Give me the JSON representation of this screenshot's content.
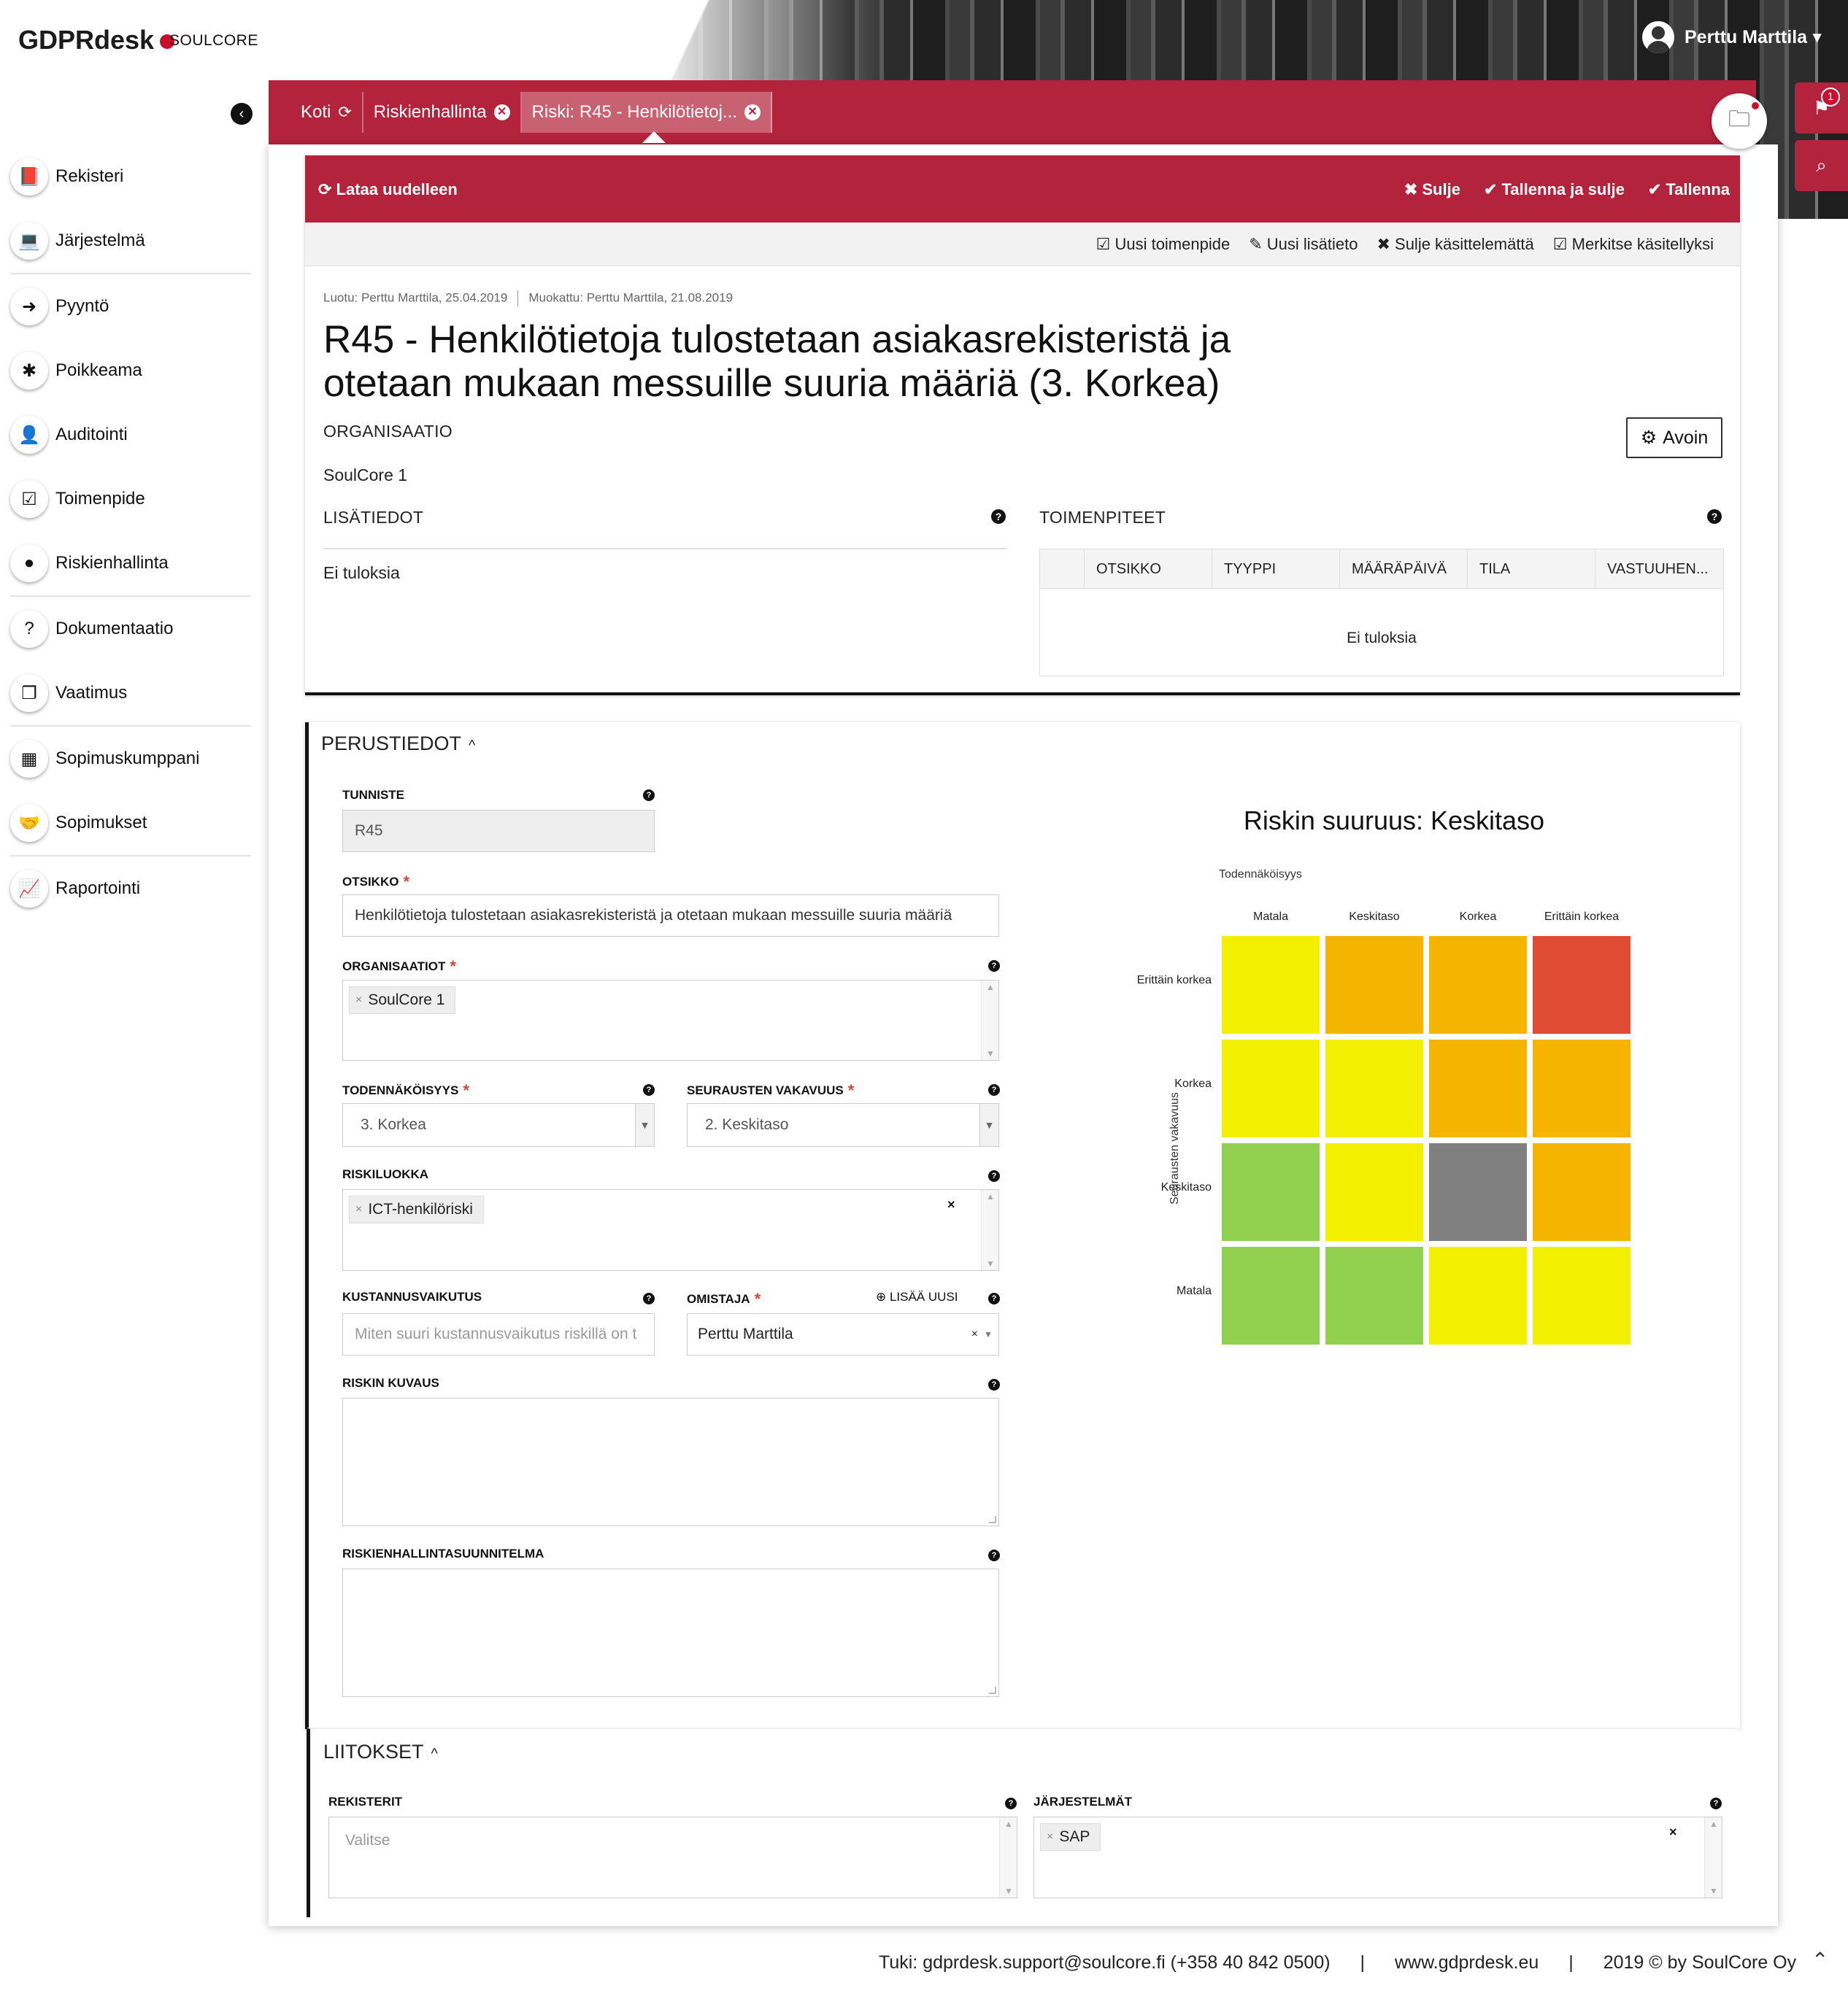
{
  "brand": {
    "logo": "GDPRdesk",
    "company": "SOULCORE"
  },
  "user": {
    "name": "Perttu Marttila"
  },
  "sidebar": {
    "items": [
      {
        "label": "Rekisteri",
        "icon": "book-icon",
        "glyph": "📕"
      },
      {
        "label": "Järjestelmä",
        "icon": "laptop-icon",
        "glyph": "💻"
      },
      {
        "label": "Pyyntö",
        "icon": "sign-in-icon",
        "glyph": "➜"
      },
      {
        "label": "Poikkeama",
        "icon": "bug-icon",
        "glyph": "✱"
      },
      {
        "label": "Auditointi",
        "icon": "user-secret-icon",
        "glyph": "👤"
      },
      {
        "label": "Toimenpide",
        "icon": "check-square-icon",
        "glyph": "☑"
      },
      {
        "label": "Riskienhallinta",
        "icon": "bomb-icon",
        "glyph": "●"
      },
      {
        "label": "Dokumentaatio",
        "icon": "question-circle-icon",
        "glyph": "?"
      },
      {
        "label": "Vaatimus",
        "icon": "copy-icon",
        "glyph": "❐"
      },
      {
        "label": "Sopimuskumppani",
        "icon": "building-icon",
        "glyph": "▦"
      },
      {
        "label": "Sopimukset",
        "icon": "handshake-icon",
        "glyph": "🤝"
      },
      {
        "label": "Raportointi",
        "icon": "line-chart-icon",
        "glyph": "📈"
      }
    ]
  },
  "tabs": [
    {
      "label": "Koti",
      "icon": "refresh-icon"
    },
    {
      "label": "Riskienhallinta",
      "icon": "close-icon"
    },
    {
      "label": "Riski: R45 - Henkilötietoj...",
      "icon": "close-icon"
    }
  ],
  "notifications": {
    "count": "1"
  },
  "toolbar": {
    "reload": "Lataa uudelleen",
    "close": "Sulje",
    "save_close": "Tallenna ja sulje",
    "save": "Tallenna"
  },
  "subbar": {
    "new_action": "Uusi toimenpide",
    "new_info": "Uusi lisätieto",
    "close_unhandled": "Sulje käsittelemättä",
    "mark_handled": "Merkitse käsitellyksi"
  },
  "record": {
    "created": "Luotu: Perttu Marttila, 25.04.2019",
    "modified": "Muokattu: Perttu Marttila, 21.08.2019",
    "title": "R45 - Henkilötietoja tulostetaan asiakasrekisteristä ja otetaan mukaan messuille suuria määriä (3. Korkea)",
    "org_label": "ORGANISAATIO",
    "org_value": "SoulCore 1",
    "status": "Avoin",
    "info_label": "LISÄTIEDOT",
    "info_empty": "Ei tuloksia",
    "actions_label": "TOIMENPITEET",
    "actions_columns": [
      "OTSIKKO",
      "TYYPPI",
      "MÄÄRÄPÄIVÄ",
      "TILA",
      "VASTUUHEN..."
    ],
    "actions_empty": "Ei tuloksia"
  },
  "basics": {
    "section": "PERUSTIEDOT",
    "id_label": "TUNNISTE",
    "id_value": "R45",
    "title_label": "OTSIKKO",
    "title_value": "Henkilötietoja tulostetaan asiakasrekisteristä ja otetaan mukaan messuille suuria määriä",
    "orgs_label": "ORGANISAATIOT",
    "orgs_value": "SoulCore 1",
    "prob_label": "TODENNÄKÖISYYS",
    "prob_value": "3. Korkea",
    "sev_label": "SEURAUSTEN VAKAVUUS",
    "sev_value": "2. Keskitaso",
    "class_label": "RISKILUOKKA",
    "class_value": "ICT-henkilöriski",
    "cost_label": "KUSTANNUSVAIKUTUS",
    "cost_placeholder": "Miten suuri kustannusvaikutus riskillä on t",
    "owner_label": "OMISTAJA",
    "owner_add": "LISÄÄ UUSI",
    "owner_value": "Perttu Marttila",
    "desc_label": "RISKIN KUVAUS",
    "plan_label": "RISKIENHALLINTASUUNNITELMA",
    "required_mark": "*",
    "chevron": "^"
  },
  "matrix": {
    "title": "Riskin suuruus: Keskitaso",
    "x_label": "Todennäköisyys",
    "y_label": "Seurausten vakavuus",
    "columns": [
      "Matala",
      "Keskitaso",
      "Korkea",
      "Erittäin korkea"
    ],
    "rows": [
      "Erittäin korkea",
      "Korkea",
      "Keskitaso",
      "Matala"
    ],
    "colors": [
      [
        "#f2ef00",
        "#f4b400",
        "#f4b400",
        "#e04b33"
      ],
      [
        "#f2ef00",
        "#f2ef00",
        "#f4b400",
        "#f4b400"
      ],
      [
        "#92d050",
        "#f2ef00",
        "#808080",
        "#f4b400"
      ],
      [
        "#92d050",
        "#92d050",
        "#f2ef00",
        "#f2ef00"
      ]
    ],
    "selected": {
      "row": "Keskitaso",
      "column": "Korkea"
    }
  },
  "links": {
    "section": "LIITOKSET",
    "registers_label": "REKISTERIT",
    "registers_placeholder": "Valitse",
    "systems_label": "JÄRJESTELMÄT",
    "systems_value": "SAP"
  },
  "footer": {
    "support": "Tuki:  gdprdesk.support@soulcore.fi  (+358 40 842 0500)",
    "sep": "|",
    "site": "www.gdprdesk.eu",
    "copy": "2019 © by SoulCore Oy"
  },
  "colors": {
    "brand_red": "#b3243c",
    "accent_red": "#c8102e"
  }
}
